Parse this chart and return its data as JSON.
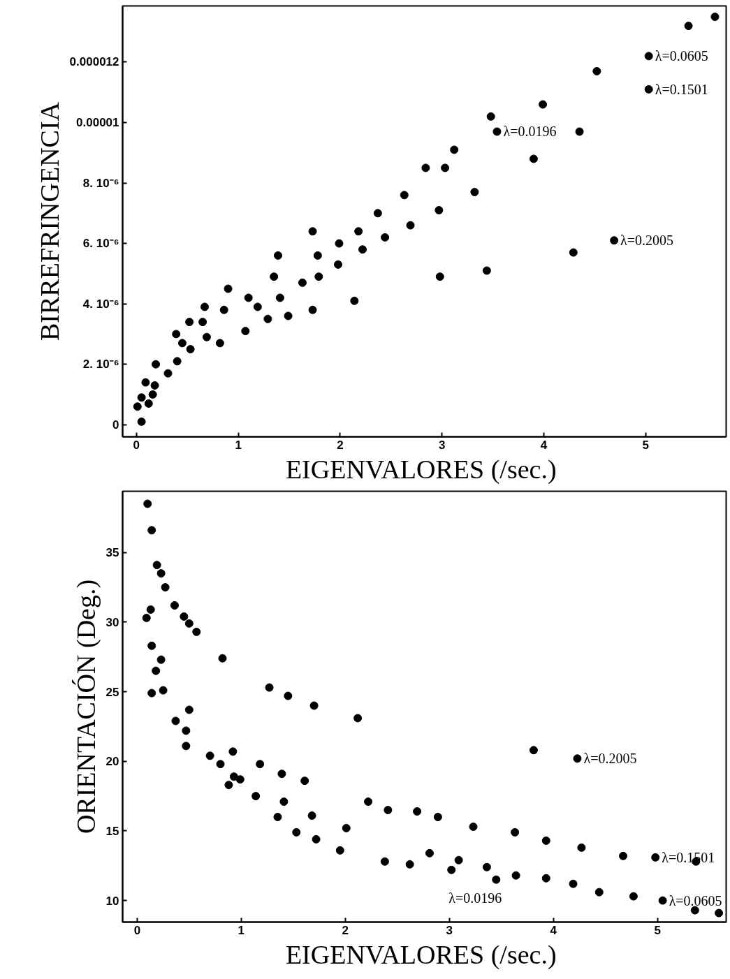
{
  "chart_data": [
    {
      "type": "scatter",
      "xlabel": "EIGENVALORES  (/sec.)",
      "ylabel": "BIRREFRINGENCIA",
      "marker": "circle",
      "grid": false,
      "xlim": [
        -0.136,
        5.79
      ],
      "ylim": [
        -4e-07,
        1.386e-05
      ],
      "xticks": [
        0,
        1,
        2,
        3,
        4,
        5
      ],
      "yticks": [
        {
          "value": 0,
          "label": "0"
        },
        {
          "value": 2e-06,
          "label": "2. 10⁻⁶"
        },
        {
          "value": 4e-06,
          "label": "4. 10⁻⁶"
        },
        {
          "value": 6e-06,
          "label": "6. 10⁻⁶"
        },
        {
          "value": 8e-06,
          "label": "8. 10⁻⁶"
        },
        {
          "value": 1e-05,
          "label": "0.00001"
        },
        {
          "value": 1.2e-05,
          "label": "0.000012"
        }
      ],
      "series": [
        {
          "color": "#000000",
          "x": [
            0.05,
            0.01,
            0.05,
            0.12,
            0.09,
            0.16,
            0.18,
            0.19,
            0.31,
            0.4,
            0.53,
            0.45,
            0.39,
            0.52,
            0.65,
            0.67,
            0.69,
            0.82,
            0.86,
            0.9,
            1.07,
            1.1,
            1.19,
            1.29,
            1.35,
            1.39,
            1.41,
            1.49,
            1.63,
            1.73,
            1.73,
            1.78,
            1.79,
            1.98,
            1.99,
            2.14,
            2.18,
            2.22,
            2.37,
            2.44,
            2.63,
            2.69,
            2.84,
            2.97,
            2.98,
            3.03,
            3.12,
            3.32,
            3.44,
            3.48,
            3.54,
            3.9,
            3.99,
            4.29,
            4.35,
            4.52,
            4.69,
            5.03,
            5.03,
            5.42,
            5.68
          ],
          "values": [
            1e-07,
            6e-07,
            9e-07,
            7e-07,
            1.4e-06,
            1e-06,
            1.3e-06,
            2e-06,
            1.7e-06,
            2.1e-06,
            2.5e-06,
            2.7e-06,
            3e-06,
            3.4e-06,
            3.4e-06,
            3.9e-06,
            2.9e-06,
            2.7e-06,
            3.8e-06,
            4.5e-06,
            3.1e-06,
            4.2e-06,
            3.9e-06,
            3.5e-06,
            4.9e-06,
            5.6e-06,
            4.2e-06,
            3.6e-06,
            4.7e-06,
            3.8e-06,
            6.4e-06,
            5.6e-06,
            4.9e-06,
            5.3e-06,
            6e-06,
            4.1e-06,
            6.4e-06,
            5.8e-06,
            7e-06,
            6.2e-06,
            7.6e-06,
            6.6e-06,
            8.5e-06,
            7.1e-06,
            4.9e-06,
            8.5e-06,
            9.1e-06,
            7.7e-06,
            5.1e-06,
            1.02e-05,
            9.7e-06,
            8.8e-06,
            1.06e-05,
            5.7e-06,
            9.7e-06,
            1.17e-05,
            6.1e-06,
            1.22e-05,
            1.11e-05,
            1.32e-05,
            1.35e-05
          ]
        }
      ],
      "annotations": [
        {
          "text": "λ=0.0605",
          "x": 5.03,
          "y": 1.22e-05
        },
        {
          "text": "λ=0.1501",
          "x": 5.03,
          "y": 1.11e-05
        },
        {
          "text": "λ=0.0196",
          "x": 3.54,
          "y": 9.7e-06
        },
        {
          "text": "λ=0.2005",
          "x": 4.69,
          "y": 6.1e-06
        }
      ]
    },
    {
      "type": "scatter",
      "xlabel": "EIGENVALORES  (/sec.)",
      "ylabel": "ORIENTACIÓN (Deg.)",
      "marker": "circle",
      "grid": false,
      "xlim": [
        -0.14,
        5.66
      ],
      "ylim": [
        8.45,
        39.4
      ],
      "xticks": [
        0,
        1,
        2,
        3,
        4,
        5
      ],
      "yticks": [
        10,
        15,
        20,
        25,
        30,
        35
      ],
      "series": [
        {
          "color": "#000000",
          "x": [
            0.1,
            0.14,
            0.19,
            0.23,
            0.27,
            0.36,
            0.13,
            0.09,
            0.45,
            0.5,
            0.57,
            0.14,
            0.23,
            0.18,
            0.82,
            0.14,
            0.25,
            1.27,
            1.45,
            0.5,
            1.7,
            2.12,
            0.37,
            0.47,
            0.47,
            0.7,
            0.92,
            0.8,
            1.18,
            0.93,
            0.99,
            0.88,
            1.39,
            1.61,
            1.14,
            1.41,
            1.35,
            1.53,
            1.72,
            1.68,
            1.95,
            2.01,
            2.22,
            2.41,
            2.69,
            2.89,
            3.23,
            3.63,
            3.93,
            4.27,
            4.67,
            4.98,
            5.37,
            2.38,
            2.62,
            2.81,
            3.02,
            3.09,
            3.36,
            3.45,
            3.64,
            3.93,
            4.19,
            4.44,
            4.77,
            5.05,
            5.36,
            5.59,
            3.81,
            4.23
          ],
          "values": [
            38.5,
            36.6,
            34.1,
            33.5,
            32.5,
            31.2,
            30.9,
            30.3,
            30.4,
            29.9,
            29.3,
            28.3,
            27.3,
            26.5,
            27.4,
            24.9,
            25.1,
            25.3,
            24.7,
            23.7,
            24.0,
            23.1,
            22.9,
            22.2,
            21.1,
            20.4,
            20.7,
            19.8,
            19.8,
            18.9,
            18.7,
            18.3,
            19.1,
            18.6,
            17.5,
            17.1,
            16.0,
            14.9,
            14.4,
            16.1,
            13.6,
            15.2,
            17.1,
            16.5,
            16.4,
            16.0,
            15.3,
            14.9,
            14.3,
            13.8,
            13.2,
            13.1,
            12.8,
            12.8,
            12.6,
            13.4,
            12.2,
            12.9,
            12.4,
            11.5,
            11.8,
            11.6,
            11.2,
            10.6,
            10.3,
            10.0,
            9.3,
            9.1,
            20.8,
            20.2
          ]
        }
      ],
      "annotations": [
        {
          "text": "λ=0.2005",
          "x": 4.23,
          "y": 20.2
        },
        {
          "text": "λ=0.1501",
          "x": 4.98,
          "y": 13.1
        },
        {
          "text": "λ=0.0196",
          "x": 3.45,
          "y": 11.5
        },
        {
          "text": "λ=0.0605",
          "x": 5.05,
          "y": 10.0
        }
      ]
    }
  ]
}
